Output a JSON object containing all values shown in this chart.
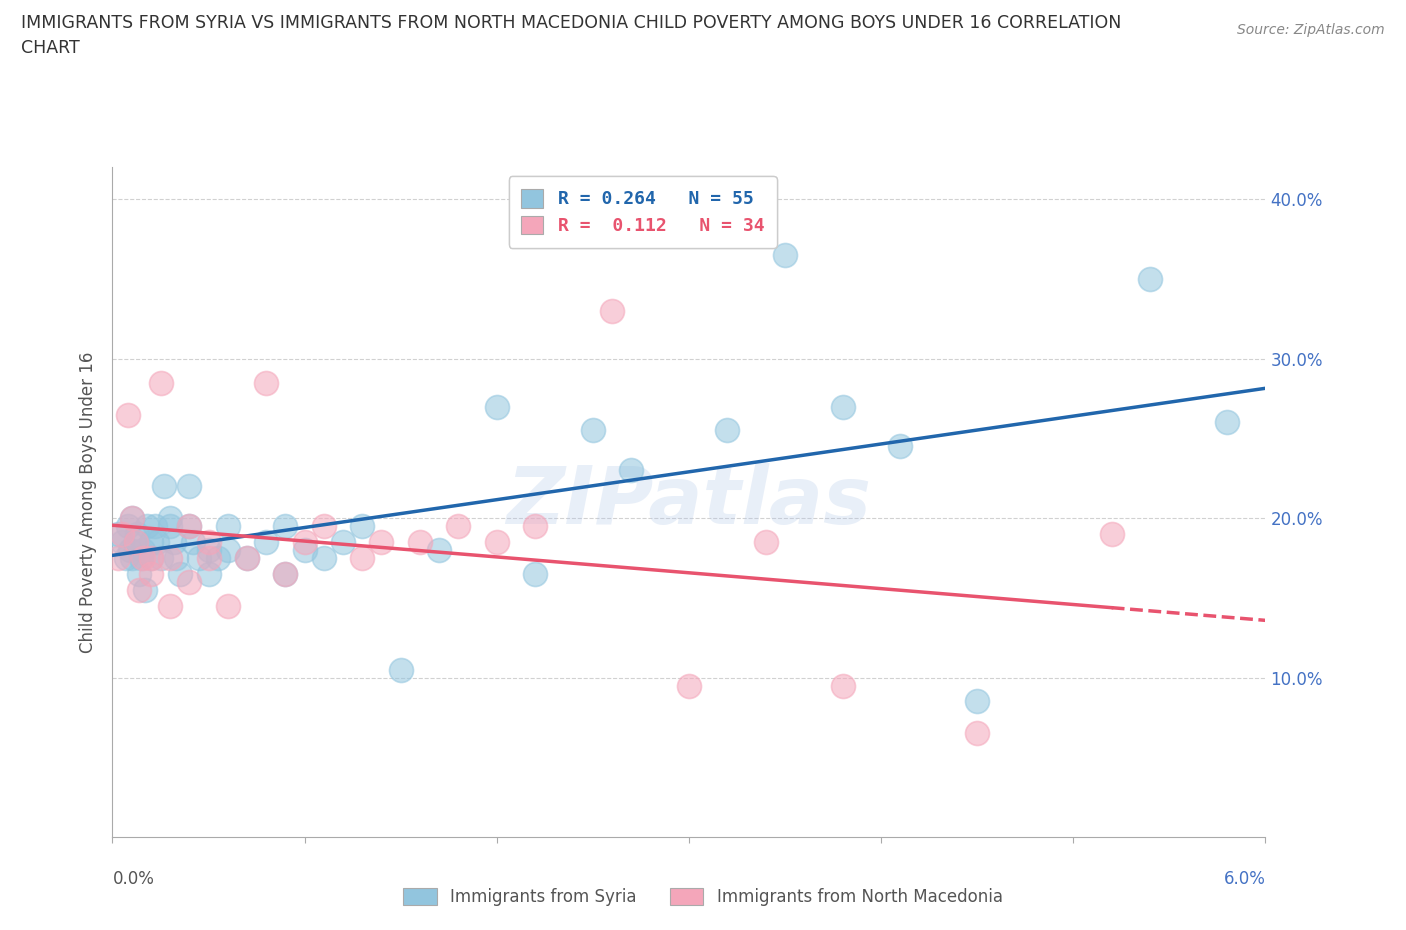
{
  "title_line1": "IMMIGRANTS FROM SYRIA VS IMMIGRANTS FROM NORTH MACEDONIA CHILD POVERTY AMONG BOYS UNDER 16 CORRELATION",
  "title_line2": "CHART",
  "source": "Source: ZipAtlas.com",
  "ylabel": "Child Poverty Among Boys Under 16",
  "xlim": [
    0.0,
    0.06
  ],
  "ylim": [
    0.0,
    0.42
  ],
  "xtick_positions": [
    0.0,
    0.06
  ],
  "xticklabels": [
    "0.0%",
    "6.0%"
  ],
  "ytick_positions": [
    0.1,
    0.2,
    0.3,
    0.4
  ],
  "yticklabels": [
    "10.0%",
    "20.0%",
    "30.0%",
    "40.0%"
  ],
  "legend_syria": "R = 0.264   N = 55",
  "legend_nmacd": "R =  0.112   N = 34",
  "legend_label_syria": "Immigrants from Syria",
  "legend_label_nmacd": "Immigrants from North Macedonia",
  "color_syria": "#92c5de",
  "color_nmacd": "#f4a6ba",
  "color_trendline_syria": "#2166ac",
  "color_trendline_nmacd": "#e8536e",
  "watermark": "ZIPatlas",
  "syria_x": [
    0.0003,
    0.0005,
    0.0007,
    0.0008,
    0.0009,
    0.001,
    0.001,
    0.0012,
    0.0013,
    0.0014,
    0.0015,
    0.0016,
    0.0017,
    0.0018,
    0.002,
    0.002,
    0.0022,
    0.0023,
    0.0025,
    0.0027,
    0.003,
    0.003,
    0.0032,
    0.0033,
    0.0035,
    0.004,
    0.004,
    0.0042,
    0.0045,
    0.005,
    0.005,
    0.0055,
    0.006,
    0.006,
    0.007,
    0.008,
    0.009,
    0.009,
    0.01,
    0.011,
    0.012,
    0.013,
    0.015,
    0.017,
    0.02,
    0.022,
    0.025,
    0.027,
    0.032,
    0.035,
    0.038,
    0.041,
    0.045,
    0.054,
    0.058
  ],
  "syria_y": [
    0.19,
    0.185,
    0.175,
    0.195,
    0.18,
    0.2,
    0.175,
    0.185,
    0.19,
    0.165,
    0.175,
    0.18,
    0.155,
    0.195,
    0.185,
    0.175,
    0.195,
    0.185,
    0.175,
    0.22,
    0.195,
    0.2,
    0.185,
    0.175,
    0.165,
    0.22,
    0.195,
    0.185,
    0.175,
    0.18,
    0.165,
    0.175,
    0.195,
    0.18,
    0.175,
    0.185,
    0.195,
    0.165,
    0.18,
    0.175,
    0.185,
    0.195,
    0.105,
    0.18,
    0.27,
    0.165,
    0.255,
    0.23,
    0.255,
    0.365,
    0.27,
    0.245,
    0.085,
    0.35,
    0.26
  ],
  "nmacd_x": [
    0.0003,
    0.0005,
    0.0008,
    0.001,
    0.0012,
    0.0014,
    0.0016,
    0.002,
    0.002,
    0.0025,
    0.003,
    0.003,
    0.004,
    0.004,
    0.005,
    0.005,
    0.006,
    0.007,
    0.008,
    0.009,
    0.01,
    0.011,
    0.013,
    0.014,
    0.016,
    0.018,
    0.02,
    0.022,
    0.026,
    0.03,
    0.034,
    0.038,
    0.045,
    0.052
  ],
  "nmacd_y": [
    0.175,
    0.19,
    0.265,
    0.2,
    0.185,
    0.155,
    0.175,
    0.175,
    0.165,
    0.285,
    0.175,
    0.145,
    0.195,
    0.16,
    0.185,
    0.175,
    0.145,
    0.175,
    0.285,
    0.165,
    0.185,
    0.195,
    0.175,
    0.185,
    0.185,
    0.195,
    0.185,
    0.195,
    0.33,
    0.095,
    0.185,
    0.095,
    0.065,
    0.19
  ]
}
